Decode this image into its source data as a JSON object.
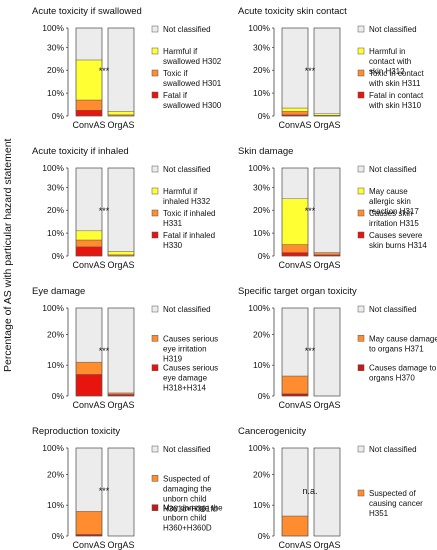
{
  "figure": {
    "ylabel": "Percentage of AS with particular hazard statement"
  },
  "colors": {
    "not_classified": "#ececec",
    "yellow": "#ffff33",
    "orange": "#ff8c2e",
    "red": "#e8150f",
    "dark_red": "#c61a1a",
    "border": "#555555"
  },
  "chart_data": [
    {
      "type": "bar",
      "stacked": true,
      "title": "Acute toxicity if swallowed",
      "categories": [
        "ConvAS",
        "OrgAS"
      ],
      "yticks": [
        "0%",
        "10%",
        "20%",
        "30%",
        "100%"
      ],
      "significance": "***",
      "series": [
        {
          "name": "Fatal if swallowed H300",
          "color": "red",
          "values": [
            2.5,
            0
          ]
        },
        {
          "name": "Toxic if swallowed H301",
          "color": "orange",
          "values": [
            4.5,
            0.5
          ]
        },
        {
          "name": "Harmful if swallowed H302",
          "color": "yellow",
          "values": [
            17.5,
            1.5
          ]
        },
        {
          "name": "Not classified",
          "color": "not_classified",
          "values": [
            75.5,
            98
          ]
        }
      ]
    },
    {
      "type": "bar",
      "stacked": true,
      "title": "Acute toxicity skin contact",
      "categories": [
        "ConvAS",
        "OrgAS"
      ],
      "yticks": [
        "0%",
        "10%",
        "20%",
        "30%",
        "100%"
      ],
      "significance": "***",
      "series": [
        {
          "name": "Fatal in contact with skin H310",
          "color": "red",
          "values": [
            0.5,
            0
          ]
        },
        {
          "name": "Toxic in contact with skin H311",
          "color": "orange",
          "values": [
            1.5,
            0.3
          ]
        },
        {
          "name": "Harmful in contact with skin H312",
          "color": "yellow",
          "values": [
            1.5,
            0.7
          ]
        },
        {
          "name": "Not classified",
          "color": "not_classified",
          "values": [
            96.5,
            99
          ]
        }
      ]
    },
    {
      "type": "bar",
      "stacked": true,
      "title": "Acute toxicity if inhaled",
      "categories": [
        "ConvAS",
        "OrgAS"
      ],
      "yticks": [
        "0%",
        "10%",
        "20%",
        "30%",
        "100%"
      ],
      "significance": "***",
      "series": [
        {
          "name": "Fatal if inhaled H330",
          "color": "red",
          "values": [
            4,
            0
          ]
        },
        {
          "name": "Toxic if inhaled H331",
          "color": "orange",
          "values": [
            3,
            0.5
          ]
        },
        {
          "name": "Harmful if inhaled H332",
          "color": "yellow",
          "values": [
            4,
            1.5
          ]
        },
        {
          "name": "Not classified",
          "color": "not_classified",
          "values": [
            89,
            98
          ]
        }
      ]
    },
    {
      "type": "bar",
      "stacked": true,
      "title": "Skin damage",
      "categories": [
        "ConvAS",
        "OrgAS"
      ],
      "yticks": [
        "0%",
        "10%",
        "20%",
        "30%",
        "100%"
      ],
      "significance": "***",
      "series": [
        {
          "name": "Causes severe skin burns H314",
          "color": "red",
          "values": [
            1.5,
            0.5
          ]
        },
        {
          "name": "Causes skin irritation H315",
          "color": "orange",
          "values": [
            3.5,
            1
          ]
        },
        {
          "name": "May cause allergic skin reaction H317",
          "color": "yellow",
          "values": [
            20,
            0
          ]
        },
        {
          "name": "Not classified",
          "color": "not_classified",
          "values": [
            75,
            98.5
          ]
        }
      ]
    },
    {
      "type": "bar",
      "stacked": true,
      "title": "Eye damage",
      "categories": [
        "ConvAS",
        "OrgAS"
      ],
      "yticks": [
        "0%",
        "10%",
        "20%",
        "100%"
      ],
      "significance": "***",
      "series": [
        {
          "name": "Causes serious eye damage H318+H314",
          "color": "red",
          "values": [
            7,
            0.5
          ]
        },
        {
          "name": "Causes serious eye irritation H319",
          "color": "orange",
          "values": [
            4,
            0.5
          ]
        },
        {
          "name": "Not classified",
          "color": "not_classified",
          "values": [
            89,
            99
          ]
        }
      ]
    },
    {
      "type": "bar",
      "stacked": true,
      "title": "Specific target organ toxicity",
      "categories": [
        "ConvAS",
        "OrgAS"
      ],
      "yticks": [
        "0%",
        "10%",
        "20%",
        "100%"
      ],
      "significance": "***",
      "series": [
        {
          "name": "Causes damage to organs H370",
          "color": "dark_red",
          "values": [
            0.7,
            0
          ]
        },
        {
          "name": "May cause damage to organs H371",
          "color": "orange",
          "values": [
            5.8,
            0
          ]
        },
        {
          "name": "Not classified",
          "color": "not_classified",
          "values": [
            93.5,
            100
          ]
        }
      ]
    },
    {
      "type": "bar",
      "stacked": true,
      "title": "Reproduction toxicity",
      "categories": [
        "ConvAS",
        "OrgAS"
      ],
      "yticks": [
        "0%",
        "10%",
        "20%",
        "100%"
      ],
      "significance": "***",
      "series": [
        {
          "name": "May damage the unborn child H360+H360D",
          "color": "dark_red",
          "values": [
            0.5,
            0
          ]
        },
        {
          "name": "Suspected of damaging the unborn child H361d+H361fd",
          "color": "orange",
          "values": [
            7.5,
            0
          ]
        },
        {
          "name": "Not classified",
          "color": "not_classified",
          "values": [
            92,
            100
          ]
        }
      ]
    },
    {
      "type": "bar",
      "stacked": true,
      "title": "Cancerogenicity",
      "categories": [
        "ConvAS",
        "OrgAS"
      ],
      "yticks": [
        "0%",
        "10%",
        "20%",
        "100%"
      ],
      "significance": "n.a.",
      "series": [
        {
          "name": "Suspected of causing cancer H351",
          "color": "orange",
          "values": [
            6.5,
            0
          ]
        },
        {
          "name": "Not classified",
          "color": "not_classified",
          "values": [
            93.5,
            100
          ]
        }
      ]
    }
  ]
}
